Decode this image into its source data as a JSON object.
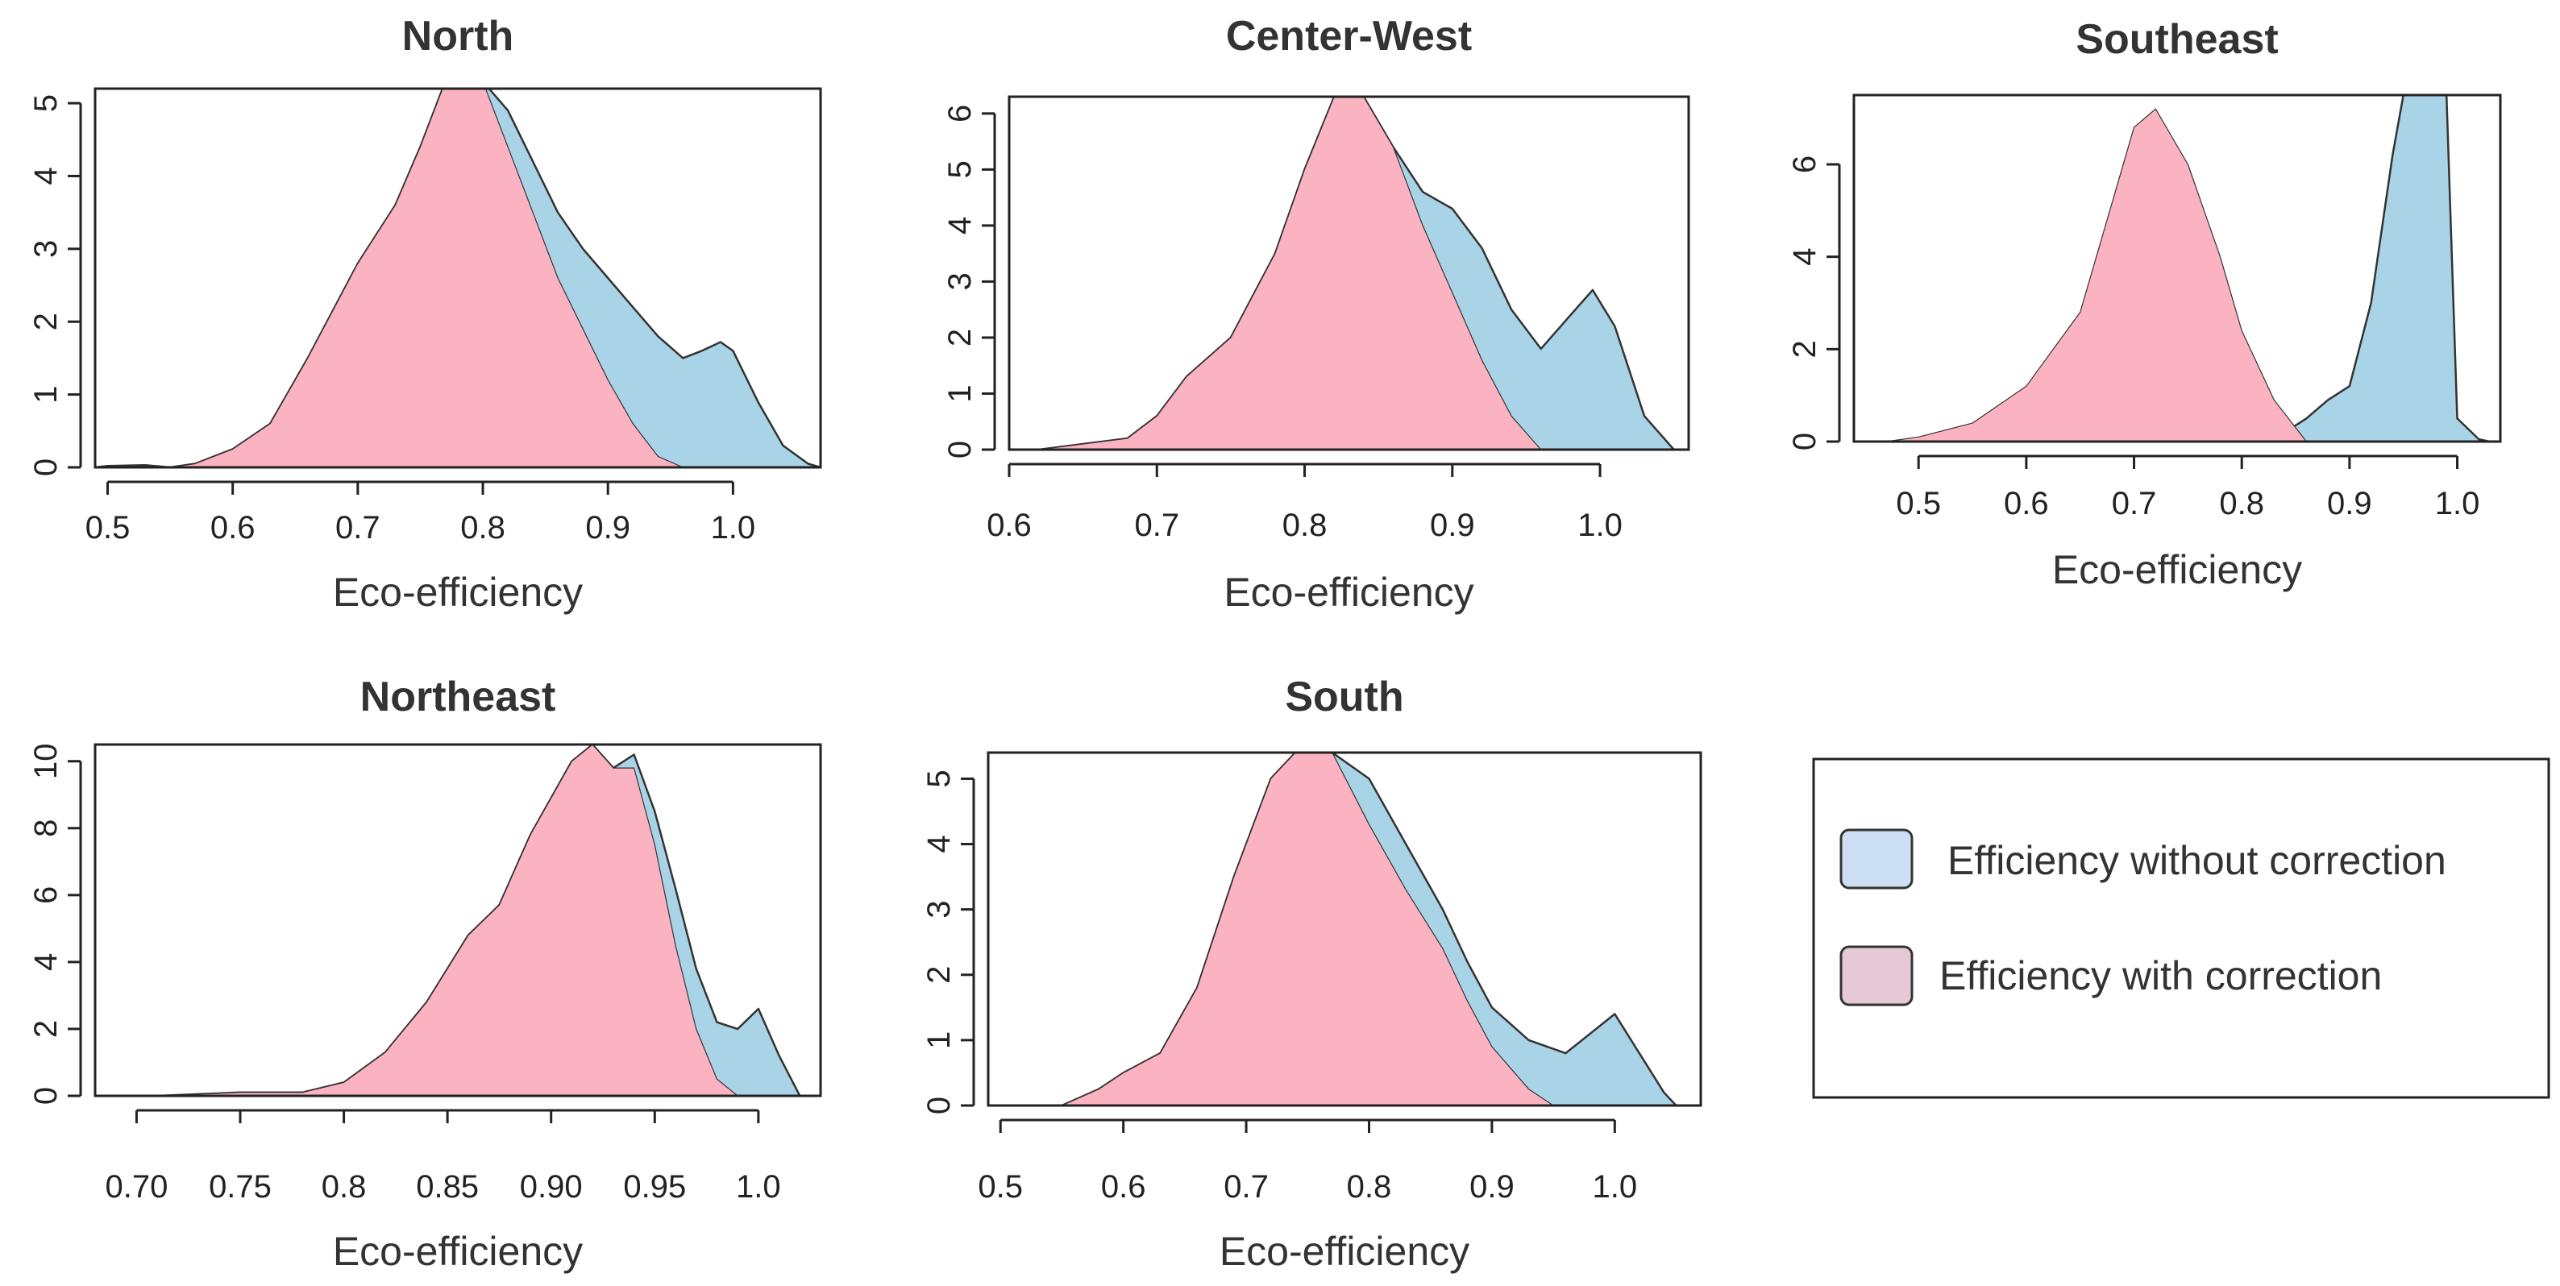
{
  "colors": {
    "without_correction": "#a9d3e6",
    "with_correction": "#fbb3c1",
    "legend_without": "#cde0f3",
    "legend_with": "#e6c9d6"
  },
  "legend": {
    "items": [
      {
        "label": "Efficiency without correction",
        "color": "#cde0f3"
      },
      {
        "label": "Efficiency with correction",
        "color": "#e6c9d6"
      }
    ]
  },
  "chart_data": [
    {
      "type": "area",
      "title": "North",
      "xlabel": "Eco-efficiency",
      "ylabel": "",
      "xlim": [
        0.49,
        1.07
      ],
      "ylim": [
        0,
        5.2
      ],
      "xticks": [
        0.5,
        0.6,
        0.7,
        0.8,
        0.9,
        1.0
      ],
      "xtick_labels": [
        "0.5",
        "0.6",
        "0.7",
        "0.8",
        "0.9",
        "1.0"
      ],
      "yticks": [
        0,
        1,
        2,
        3,
        4,
        5
      ],
      "ytick_labels": [
        "0",
        "1",
        "2",
        "3",
        "4",
        "5"
      ],
      "series": [
        {
          "name": "Efficiency without correction",
          "x": [
            0.49,
            0.5,
            0.53,
            0.55,
            0.57,
            0.6,
            0.63,
            0.66,
            0.7,
            0.73,
            0.75,
            0.77,
            0.8,
            0.82,
            0.84,
            0.86,
            0.88,
            0.9,
            0.92,
            0.94,
            0.96,
            0.975,
            0.99,
            1.0,
            1.02,
            1.04,
            1.06,
            1.07
          ],
          "y": [
            0,
            0.02,
            0.03,
            0.0,
            0.05,
            0.25,
            0.6,
            1.5,
            2.8,
            3.6,
            4.4,
            5.3,
            5.3,
            4.9,
            4.2,
            3.5,
            3.0,
            2.6,
            2.2,
            1.8,
            1.5,
            1.6,
            1.72,
            1.6,
            0.9,
            0.3,
            0.05,
            0
          ]
        },
        {
          "name": "Efficiency with correction",
          "x": [
            0.55,
            0.57,
            0.6,
            0.63,
            0.66,
            0.7,
            0.73,
            0.75,
            0.77,
            0.8,
            0.82,
            0.84,
            0.86,
            0.88,
            0.9,
            0.92,
            0.94,
            0.96
          ],
          "y": [
            0,
            0.05,
            0.25,
            0.6,
            1.5,
            2.8,
            3.6,
            4.4,
            5.3,
            5.3,
            4.4,
            3.5,
            2.6,
            1.9,
            1.2,
            0.6,
            0.15,
            0
          ]
        }
      ]
    },
    {
      "type": "area",
      "title": "Center-West",
      "xlabel": "Eco-efficiency",
      "ylabel": "",
      "xlim": [
        0.6,
        1.06
      ],
      "ylim": [
        0,
        6.3
      ],
      "xticks": [
        0.6,
        0.7,
        0.8,
        0.9,
        1.0
      ],
      "xtick_labels": [
        "0.6",
        "0.7",
        "0.8",
        "0.9",
        "1.0"
      ],
      "yticks": [
        0,
        1,
        2,
        3,
        4,
        5,
        6
      ],
      "ytick_labels": [
        "0",
        "1",
        "2",
        "3",
        "4",
        "5",
        "6"
      ],
      "series": [
        {
          "name": "Efficiency without correction",
          "x": [
            0.62,
            0.65,
            0.68,
            0.7,
            0.72,
            0.75,
            0.78,
            0.8,
            0.82,
            0.84,
            0.86,
            0.88,
            0.9,
            0.92,
            0.94,
            0.96,
            0.98,
            0.995,
            1.01,
            1.03,
            1.05
          ],
          "y": [
            0,
            0.1,
            0.2,
            0.6,
            1.3,
            2.0,
            3.5,
            5.0,
            6.3,
            6.3,
            5.4,
            4.6,
            4.3,
            3.6,
            2.5,
            1.8,
            2.4,
            2.85,
            2.2,
            0.6,
            0
          ]
        },
        {
          "name": "Efficiency with correction",
          "x": [
            0.62,
            0.65,
            0.68,
            0.7,
            0.72,
            0.75,
            0.78,
            0.8,
            0.82,
            0.84,
            0.86,
            0.88,
            0.9,
            0.92,
            0.94,
            0.96
          ],
          "y": [
            0,
            0.1,
            0.2,
            0.6,
            1.3,
            2.0,
            3.5,
            5.0,
            6.3,
            6.3,
            5.4,
            4.0,
            2.8,
            1.6,
            0.6,
            0
          ]
        }
      ]
    },
    {
      "type": "area",
      "title": "Southeast",
      "xlabel": "Eco-efficiency",
      "ylabel": "",
      "xlim": [
        0.44,
        1.04
      ],
      "ylim": [
        0,
        7.5
      ],
      "xticks": [
        0.5,
        0.6,
        0.7,
        0.8,
        0.9,
        1.0
      ],
      "xtick_labels": [
        "0.5",
        "0.6",
        "0.7",
        "0.8",
        "0.9",
        "1.0"
      ],
      "yticks": [
        0,
        2,
        4,
        6
      ],
      "ytick_labels": [
        "0",
        "2",
        "4",
        "6"
      ],
      "series": [
        {
          "name": "Efficiency without correction",
          "x": [
            0.81,
            0.84,
            0.86,
            0.88,
            0.9,
            0.92,
            0.94,
            0.95,
            0.99,
            1.0,
            1.02,
            1.03
          ],
          "y": [
            0,
            0.2,
            0.5,
            0.9,
            1.2,
            3.0,
            6.2,
            7.5,
            7.5,
            0.5,
            0.05,
            0
          ]
        },
        {
          "name": "Efficiency with correction",
          "x": [
            0.47,
            0.5,
            0.55,
            0.6,
            0.65,
            0.68,
            0.7,
            0.72,
            0.75,
            0.78,
            0.8,
            0.83,
            0.86
          ],
          "y": [
            0,
            0.1,
            0.4,
            1.2,
            2.8,
            5.2,
            6.8,
            7.2,
            6.0,
            4.0,
            2.4,
            0.9,
            0
          ]
        }
      ]
    },
    {
      "type": "area",
      "title": "Northeast",
      "xlabel": "Eco-efficiency",
      "ylabel": "",
      "xlim": [
        0.68,
        1.03
      ],
      "ylim": [
        0,
        10.5
      ],
      "xticks": [
        0.7,
        0.75,
        0.8,
        0.85,
        0.9,
        0.95,
        1.0
      ],
      "xtick_labels": [
        "0.70",
        "0.75",
        "0.8",
        "0.85",
        "0.90",
        "0.95",
        "1.0"
      ],
      "yticks": [
        0,
        2,
        4,
        6,
        8,
        10
      ],
      "ytick_labels": [
        "0",
        "2",
        "4",
        "6",
        "8",
        "10"
      ],
      "series": [
        {
          "name": "Efficiency without correction",
          "x": [
            0.71,
            0.75,
            0.78,
            0.8,
            0.82,
            0.84,
            0.86,
            0.875,
            0.89,
            0.91,
            0.92,
            0.93,
            0.94,
            0.95,
            0.96,
            0.97,
            0.98,
            0.99,
            1.0,
            1.01,
            1.02
          ],
          "y": [
            0,
            0.1,
            0.1,
            0.4,
            1.3,
            2.8,
            4.8,
            5.7,
            7.8,
            10.0,
            10.5,
            9.8,
            10.2,
            8.5,
            6.2,
            3.8,
            2.2,
            2.0,
            2.6,
            1.2,
            0
          ]
        },
        {
          "name": "Efficiency with correction",
          "x": [
            0.71,
            0.75,
            0.78,
            0.8,
            0.82,
            0.84,
            0.86,
            0.875,
            0.89,
            0.91,
            0.92,
            0.93,
            0.94,
            0.95,
            0.96,
            0.97,
            0.98,
            0.99
          ],
          "y": [
            0,
            0.1,
            0.1,
            0.4,
            1.3,
            2.8,
            4.8,
            5.7,
            7.8,
            10.0,
            10.5,
            9.8,
            9.8,
            7.5,
            4.5,
            2.0,
            0.5,
            0
          ]
        }
      ]
    },
    {
      "type": "area",
      "title": "South",
      "xlabel": "Eco-efficiency",
      "ylabel": "",
      "xlim": [
        0.49,
        1.07
      ],
      "ylim": [
        0,
        5.4
      ],
      "xticks": [
        0.5,
        0.6,
        0.7,
        0.8,
        0.9,
        1.0
      ],
      "xtick_labels": [
        "0.5",
        "0.6",
        "0.7",
        "0.8",
        "0.9",
        "1.0"
      ],
      "yticks": [
        0,
        1,
        2,
        3,
        4,
        5
      ],
      "ytick_labels": [
        "0",
        "1",
        "2",
        "3",
        "4",
        "5"
      ],
      "series": [
        {
          "name": "Efficiency without correction",
          "x": [
            0.55,
            0.58,
            0.6,
            0.63,
            0.66,
            0.69,
            0.72,
            0.74,
            0.77,
            0.8,
            0.83,
            0.86,
            0.88,
            0.9,
            0.93,
            0.96,
            0.98,
            1.0,
            1.02,
            1.04,
            1.05
          ],
          "y": [
            0,
            0.25,
            0.5,
            0.8,
            1.8,
            3.5,
            5.0,
            5.4,
            5.4,
            5.0,
            4.0,
            3.0,
            2.2,
            1.5,
            1.0,
            0.8,
            1.1,
            1.4,
            0.8,
            0.2,
            0
          ]
        },
        {
          "name": "Efficiency with correction",
          "x": [
            0.55,
            0.58,
            0.6,
            0.63,
            0.66,
            0.69,
            0.72,
            0.74,
            0.77,
            0.8,
            0.83,
            0.86,
            0.88,
            0.9,
            0.93,
            0.95
          ],
          "y": [
            0,
            0.25,
            0.5,
            0.8,
            1.8,
            3.5,
            5.0,
            5.4,
            5.4,
            4.3,
            3.3,
            2.4,
            1.6,
            0.9,
            0.25,
            0
          ]
        }
      ]
    }
  ]
}
